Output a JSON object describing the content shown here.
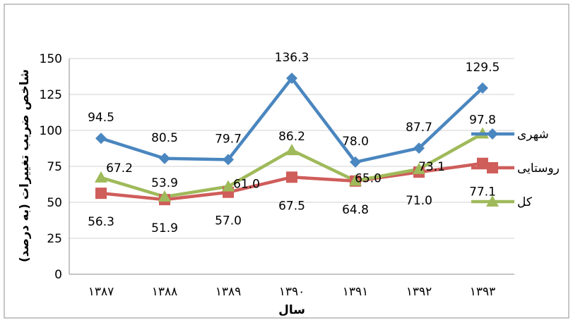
{
  "chart_data": {
    "type": "line",
    "title": "",
    "xlabel": "سال",
    "ylabel": "شاخص ضریب تغییرات (به درصد)",
    "categories": [
      "۱۳۸۷",
      "۱۳۸۸",
      "۱۳۸۹",
      "۱۳۹۰",
      "۱۳۹۱",
      "۱۳۹۲",
      "۱۳۹۳"
    ],
    "ylim": [
      0,
      150
    ],
    "yticks": [
      "0",
      "25",
      "50",
      "75",
      "100",
      "125",
      "150"
    ],
    "grid": "horizontal",
    "legend_position": "right",
    "series": [
      {
        "name": "شهری",
        "color": "#4a86bf",
        "marker": "diamond",
        "values": [
          94.5,
          80.5,
          79.7,
          136.3,
          78.0,
          87.7,
          129.5
        ],
        "labels": [
          "94.5",
          "80.5",
          "79.7",
          "136.3",
          "78.0",
          "87.7",
          "129.5"
        ]
      },
      {
        "name": "روستایی",
        "color": "#cf5d5a",
        "marker": "square",
        "values": [
          56.3,
          51.9,
          57.0,
          67.5,
          64.8,
          71.0,
          77.1
        ],
        "labels": [
          "56.3",
          "51.9",
          "57.0",
          "67.5",
          "64.8",
          "71.0",
          "77.1"
        ]
      },
      {
        "name": "کل",
        "color": "#9fba5a",
        "marker": "triangle",
        "values": [
          67.2,
          53.9,
          61.0,
          86.2,
          65.0,
          73.1,
          97.8
        ],
        "labels": [
          "67.2",
          "53.9",
          "61.0",
          "86.2",
          "65.0",
          "73.1",
          "97.8"
        ]
      }
    ]
  }
}
